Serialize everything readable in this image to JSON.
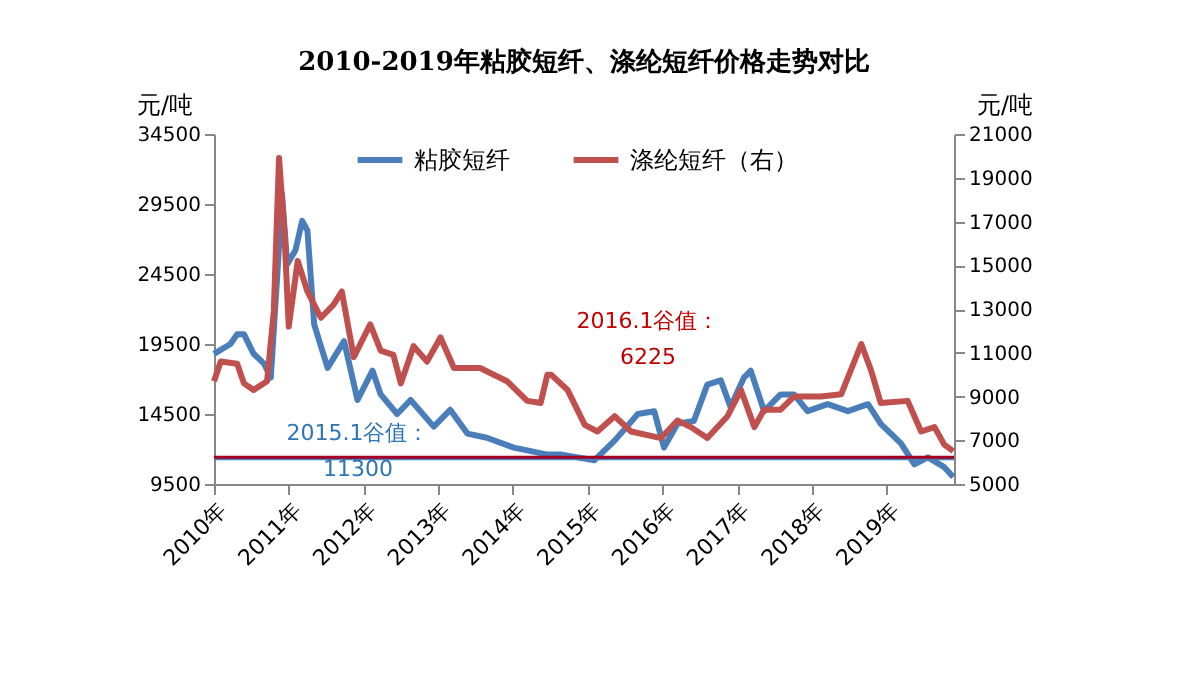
{
  "chart_data": {
    "type": "line",
    "title": "2010-2019年粘胶短纤、涤纶短纤价格走势对比",
    "ylabel": "元/吨",
    "y2label": "元/吨",
    "xlim": [
      2010,
      2019.9
    ],
    "xticks": [
      {
        "value": 2010,
        "label": "2010年"
      },
      {
        "value": 2011,
        "label": "2011年"
      },
      {
        "value": 2012,
        "label": "2012年"
      },
      {
        "value": 2013,
        "label": "2013年"
      },
      {
        "value": 2014,
        "label": "2014年"
      },
      {
        "value": 2015,
        "label": "2015年"
      },
      {
        "value": 2016,
        "label": "2016年"
      },
      {
        "value": 2017,
        "label": "2017年"
      },
      {
        "value": 2018,
        "label": "2018年"
      },
      {
        "value": 2019,
        "label": "2019年"
      }
    ],
    "ylim": [
      9500,
      34500
    ],
    "yticks": [
      9500,
      14500,
      19500,
      24500,
      29500,
      34500
    ],
    "y2lim": [
      5000,
      21000
    ],
    "y2ticks": [
      5000,
      7000,
      9000,
      11000,
      13000,
      15000,
      17000,
      19000,
      21000
    ],
    "grid": false,
    "legend": "top",
    "line_style": "solid",
    "marker": "none",
    "series": [
      {
        "name": "粘胶短纤",
        "color": "#4a7ebb",
        "axis": "y",
        "x": [
          2010.0,
          2010.22,
          2010.31,
          2010.4,
          2010.53,
          2010.67,
          2010.76,
          2010.85,
          2010.91,
          2010.98,
          2011.09,
          2011.18,
          2011.25,
          2011.34,
          2011.52,
          2011.74,
          2011.92,
          2012.12,
          2012.23,
          2012.45,
          2012.63,
          2012.94,
          2013.16,
          2013.39,
          2013.65,
          2014.01,
          2014.19,
          2014.46,
          2014.65,
          2015.09,
          2015.36,
          2015.67,
          2015.89,
          2016.02,
          2016.2,
          2016.42,
          2016.6,
          2016.78,
          2016.91,
          2017.09,
          2017.18,
          2017.36,
          2017.58,
          2017.76,
          2017.94,
          2018.21,
          2018.48,
          2018.75,
          2018.92,
          2019.19,
          2019.37,
          2019.55,
          2019.77,
          2019.89
        ],
        "values": [
          18800,
          19500,
          20200,
          20200,
          18800,
          18100,
          17100,
          24700,
          30200,
          25200,
          26200,
          28300,
          27600,
          20900,
          17800,
          19700,
          15500,
          17600,
          15900,
          14500,
          15500,
          13600,
          14800,
          13100,
          12800,
          12100,
          11900,
          11600,
          11600,
          11200,
          12600,
          14500,
          14700,
          12100,
          13800,
          14000,
          16600,
          16900,
          15000,
          17100,
          17600,
          14700,
          15900,
          15900,
          14700,
          15200,
          14700,
          15200,
          13800,
          12400,
          10900,
          11400,
          10700,
          10000
        ]
      },
      {
        "name": "涤纶短纤（右）",
        "color": "#c0504d",
        "axis": "y2",
        "x": [
          2010.0,
          2010.09,
          2010.31,
          2010.4,
          2010.53,
          2010.71,
          2010.8,
          2010.87,
          2010.94,
          2011.0,
          2011.12,
          2011.25,
          2011.43,
          2011.6,
          2011.71,
          2011.87,
          2012.09,
          2012.23,
          2012.4,
          2012.5,
          2012.67,
          2012.85,
          2013.03,
          2013.21,
          2013.56,
          2013.92,
          2014.19,
          2014.37,
          2014.46,
          2014.51,
          2014.73,
          2014.96,
          2015.13,
          2015.36,
          2015.58,
          2015.98,
          2016.2,
          2016.38,
          2016.6,
          2016.87,
          2017.05,
          2017.23,
          2017.36,
          2017.58,
          2017.76,
          2018.12,
          2018.39,
          2018.66,
          2018.79,
          2018.92,
          2019.28,
          2019.46,
          2019.64,
          2019.77,
          2019.89
        ],
        "values": [
          9700,
          10600,
          10500,
          9600,
          9300,
          9700,
          12900,
          19900,
          16600,
          12200,
          15200,
          13800,
          12600,
          13200,
          13800,
          10800,
          12300,
          11100,
          10900,
          9600,
          11300,
          10600,
          11700,
          10300,
          10300,
          9700,
          8800,
          8700,
          10000,
          10000,
          9300,
          7700,
          7400,
          8100,
          7400,
          7100,
          7900,
          7600,
          7100,
          8100,
          9300,
          7600,
          8400,
          8400,
          9000,
          9000,
          9100,
          11400,
          10200,
          8700,
          8800,
          7400,
          7600,
          6800,
          6500
        ]
      }
    ],
    "ref_lines": [
      {
        "axis": "y",
        "value": 11300,
        "color": "#4a7ebb"
      },
      {
        "axis": "y2",
        "value": 6225,
        "color": "#a50021"
      }
    ],
    "annotations": [
      "2015.1谷值：\n11300",
      "2016.1谷值：\n6225"
    ]
  }
}
